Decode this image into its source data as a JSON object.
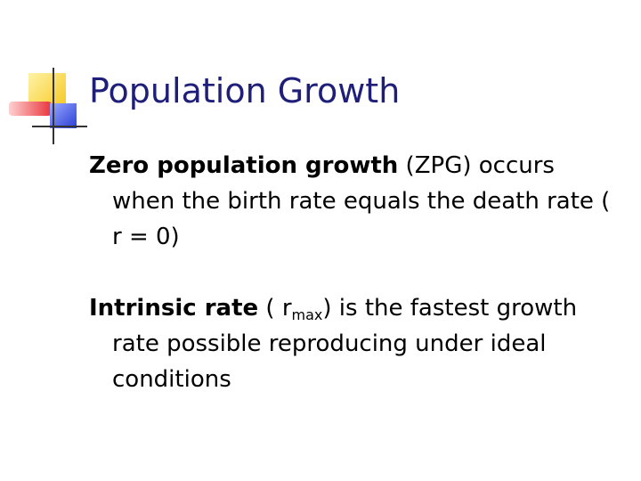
{
  "title": "Population Growth",
  "paragraphs": [
    {
      "term": "Zero population growth",
      "text": " (ZPG) occurs when the birth rate equals the death rate ( r = 0)"
    },
    {
      "term": "Intrinsic rate",
      "text_before": " ( r",
      "subscript": "max",
      "text_after": ") is the fastest growth rate possible reproducing under ideal conditions"
    }
  ],
  "logo": {
    "icon": "slide-template-logo-icon",
    "colors": {
      "yellow": "#f7d23c",
      "orange": "#f5a623",
      "red": "#e8343a",
      "blue": "#2a3fd6",
      "line": "#333333"
    }
  }
}
